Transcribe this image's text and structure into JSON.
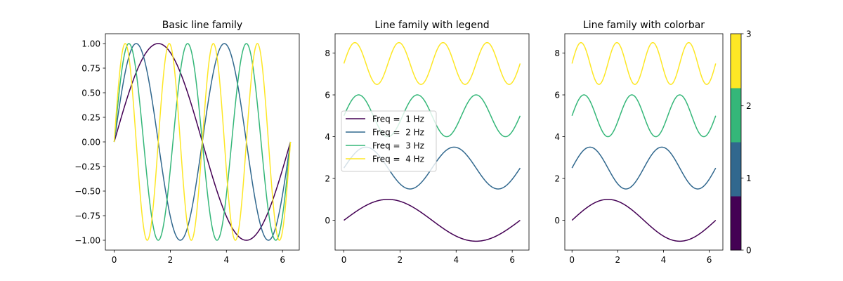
{
  "chart_data": [
    {
      "type": "line",
      "title": "Basic line family",
      "xlabel": "",
      "ylabel": "",
      "xlim": [
        -0.3142,
        6.5973
      ],
      "ylim": [
        -1.1,
        1.1
      ],
      "xticks": [
        0,
        2,
        4,
        6
      ],
      "yticks": [
        -1.0,
        -0.75,
        -0.5,
        -0.25,
        0.0,
        0.25,
        0.5,
        0.75,
        1.0
      ],
      "ytick_labels": [
        "−1.00",
        "−0.75",
        "−0.50",
        "−0.25",
        "0.00",
        "0.25",
        "0.50",
        "0.75",
        "1.00"
      ],
      "series": [
        {
          "frequency": 1,
          "offset": 0,
          "color": "#440154"
        },
        {
          "frequency": 2,
          "offset": 0,
          "color": "#31688e"
        },
        {
          "frequency": 3,
          "offset": 0,
          "color": "#35b779"
        },
        {
          "frequency": 4,
          "offset": 0,
          "color": "#fde725"
        }
      ]
    },
    {
      "type": "line",
      "title": "Line family with legend",
      "xlabel": "",
      "ylabel": "",
      "xlim": [
        -0.3142,
        6.5973
      ],
      "ylim": [
        -1.425,
        8.925
      ],
      "xticks": [
        0,
        2,
        4,
        6
      ],
      "yticks": [
        0,
        2,
        4,
        6,
        8
      ],
      "legend": "center-left",
      "series": [
        {
          "name": "Freq =  1 Hz",
          "frequency": 1,
          "offset": 0,
          "color": "#440154"
        },
        {
          "name": "Freq =  2 Hz",
          "frequency": 2,
          "offset": 2.5,
          "color": "#31688e"
        },
        {
          "name": "Freq =  3 Hz",
          "frequency": 3,
          "offset": 5,
          "color": "#35b779"
        },
        {
          "name": "Freq =  4 Hz",
          "frequency": 4,
          "offset": 7.5,
          "color": "#fde725"
        }
      ]
    },
    {
      "type": "line",
      "title": "Line family with colorbar",
      "xlabel": "",
      "ylabel": "",
      "xlim": [
        -0.3142,
        6.5973
      ],
      "ylim": [
        -1.425,
        8.925
      ],
      "xticks": [
        0,
        2,
        4,
        6
      ],
      "yticks": [
        0,
        2,
        4,
        6,
        8
      ],
      "series": [
        {
          "frequency": 1,
          "offset": 0,
          "color": "#440154"
        },
        {
          "frequency": 2,
          "offset": 2.5,
          "color": "#31688e"
        },
        {
          "frequency": 3,
          "offset": 5,
          "color": "#35b779"
        },
        {
          "frequency": 4,
          "offset": 7.5,
          "color": "#fde725"
        }
      ],
      "colorbar": {
        "range": [
          0,
          3
        ],
        "ticks": [
          0,
          1,
          2,
          3
        ],
        "colors": [
          "#440154",
          "#31688e",
          "#35b779",
          "#fde725"
        ]
      }
    }
  ]
}
